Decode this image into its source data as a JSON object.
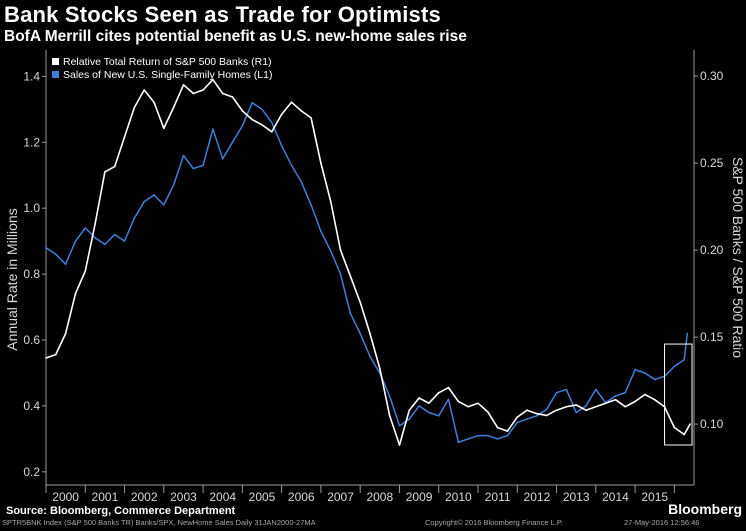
{
  "header": {
    "title": "Bank Stocks Seen as Trade for Optimists",
    "subtitle": "BofA Merrill cites potential benefit as U.S. new-home sales rise"
  },
  "chart_data": {
    "type": "line",
    "title": "Bank Stocks Seen as Trade for Optimists",
    "subtitle": "BofA Merrill cites potential benefit as U.S. new-home sales rise",
    "ylabel_left": "Annual Rate in Millions",
    "ylabel_right": "S&P 500 Banks / S&P 500 Ratio",
    "ylim_left": [
      0.16,
      1.48
    ],
    "ylim_right": [
      0.065,
      0.315
    ],
    "xlim": [
      2000.0,
      2016.5
    ],
    "left_ticks": [
      0.2,
      0.4,
      0.6,
      0.8,
      1.0,
      1.2,
      1.4
    ],
    "left_tick_labels": [
      "0.2",
      "0.4",
      "0.6",
      "0.8",
      "1.0",
      "1.2",
      "1.4"
    ],
    "right_ticks": [
      0.1,
      0.15,
      0.2,
      0.25,
      0.3
    ],
    "right_tick_labels": [
      "0.10",
      "0.15",
      "0.20",
      "0.25",
      "0.30"
    ],
    "x_ticks": [
      "2000",
      "2001",
      "2002",
      "2003",
      "2004",
      "2005",
      "2006",
      "2007",
      "2008",
      "2009",
      "2010",
      "2011",
      "2012",
      "2013",
      "2014",
      "2015"
    ],
    "series": [
      {
        "name": "Relative Total Return of S&P 500 Banks (R1)",
        "axis": "right",
        "color": "#ffffff",
        "x": [
          2000.0,
          2000.25,
          2000.5,
          2000.75,
          2001.0,
          2001.25,
          2001.5,
          2001.75,
          2002.0,
          2002.25,
          2002.5,
          2002.75,
          2003.0,
          2003.25,
          2003.5,
          2003.75,
          2004.0,
          2004.25,
          2004.5,
          2004.75,
          2005.0,
          2005.25,
          2005.5,
          2005.75,
          2006.0,
          2006.25,
          2006.5,
          2006.75,
          2007.0,
          2007.25,
          2007.5,
          2007.75,
          2008.0,
          2008.25,
          2008.5,
          2008.75,
          2009.0,
          2009.25,
          2009.5,
          2009.75,
          2010.0,
          2010.25,
          2010.5,
          2010.75,
          2011.0,
          2011.25,
          2011.5,
          2011.75,
          2012.0,
          2012.25,
          2012.5,
          2012.75,
          2013.0,
          2013.25,
          2013.5,
          2013.75,
          2014.0,
          2014.25,
          2014.5,
          2014.75,
          2015.0,
          2015.25,
          2015.5,
          2015.75,
          2016.0,
          2016.25,
          2016.4
        ],
        "values": [
          0.138,
          0.14,
          0.152,
          0.175,
          0.188,
          0.215,
          0.245,
          0.248,
          0.265,
          0.282,
          0.292,
          0.285,
          0.27,
          0.282,
          0.295,
          0.29,
          0.292,
          0.298,
          0.29,
          0.288,
          0.28,
          0.275,
          0.272,
          0.268,
          0.278,
          0.285,
          0.28,
          0.276,
          0.25,
          0.228,
          0.2,
          0.185,
          0.17,
          0.152,
          0.132,
          0.105,
          0.088,
          0.108,
          0.115,
          0.112,
          0.118,
          0.121,
          0.113,
          0.11,
          0.112,
          0.107,
          0.098,
          0.096,
          0.104,
          0.108,
          0.106,
          0.105,
          0.108,
          0.11,
          0.111,
          0.108,
          0.11,
          0.112,
          0.114,
          0.11,
          0.113,
          0.117,
          0.114,
          0.11,
          0.098,
          0.094,
          0.1
        ]
      },
      {
        "name": "Sales of New U.S. Single-Family Homes (L1)",
        "axis": "left",
        "color": "#3f7fd8",
        "x": [
          2000.0,
          2000.25,
          2000.5,
          2000.75,
          2001.0,
          2001.25,
          2001.5,
          2001.75,
          2002.0,
          2002.25,
          2002.5,
          2002.75,
          2003.0,
          2003.25,
          2003.5,
          2003.75,
          2004.0,
          2004.25,
          2004.5,
          2004.75,
          2005.0,
          2005.25,
          2005.5,
          2005.75,
          2006.0,
          2006.25,
          2006.5,
          2006.75,
          2007.0,
          2007.25,
          2007.5,
          2007.75,
          2008.0,
          2008.25,
          2008.5,
          2008.75,
          2009.0,
          2009.25,
          2009.5,
          2009.75,
          2010.0,
          2010.25,
          2010.5,
          2010.75,
          2011.0,
          2011.25,
          2011.5,
          2011.75,
          2012.0,
          2012.25,
          2012.5,
          2012.75,
          2013.0,
          2013.25,
          2013.5,
          2013.75,
          2014.0,
          2014.25,
          2014.5,
          2014.75,
          2015.0,
          2015.25,
          2015.5,
          2015.75,
          2016.0,
          2016.25,
          2016.33
        ],
        "values": [
          0.88,
          0.86,
          0.83,
          0.9,
          0.94,
          0.91,
          0.89,
          0.92,
          0.9,
          0.97,
          1.02,
          1.04,
          1.01,
          1.07,
          1.16,
          1.12,
          1.13,
          1.24,
          1.15,
          1.2,
          1.25,
          1.32,
          1.3,
          1.26,
          1.19,
          1.13,
          1.08,
          1.01,
          0.93,
          0.87,
          0.8,
          0.68,
          0.62,
          0.55,
          0.5,
          0.43,
          0.34,
          0.36,
          0.4,
          0.38,
          0.37,
          0.42,
          0.29,
          0.3,
          0.31,
          0.31,
          0.3,
          0.31,
          0.35,
          0.36,
          0.37,
          0.39,
          0.44,
          0.45,
          0.38,
          0.4,
          0.45,
          0.41,
          0.43,
          0.44,
          0.51,
          0.5,
          0.48,
          0.49,
          0.52,
          0.54,
          0.62
        ]
      }
    ],
    "legend": [
      "Relative Total Return of S&P 500 Banks (R1)",
      "Sales of New U.S. Single-Family Homes (L1)"
    ],
    "annotation": "highlight box around 2016 values",
    "grid": false
  },
  "footer": {
    "source": "Source: Bloomberg, Commerce Department",
    "brand": "Bloomberg",
    "series_codes": "SPTR5BNK Index (S&P 500 Banks TR) Banks/SPX, NewHome Sales  Daily 31JAN2000-27MA",
    "copyright": "Copyright© 2016 Bloomberg Finance L.P.",
    "timestamp": "27-May-2016 12:56:46"
  },
  "colors": {
    "background": "#000000",
    "banks_line": "#ffffff",
    "homes_line": "#3f7fd8",
    "axis": "#9a9a9a"
  }
}
